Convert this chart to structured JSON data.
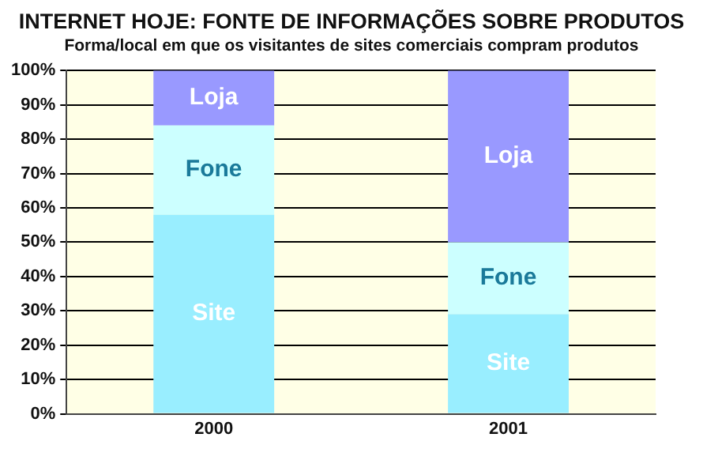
{
  "chart_data": {
    "type": "bar",
    "title": "INTERNET HOJE: FONTE DE INFORMAÇÕES SOBRE PRODUTOS",
    "subtitle": "Forma/local em que os visitantes de sites comerciais compram produtos",
    "categories": [
      "2000",
      "2001"
    ],
    "stacked": true,
    "series": [
      {
        "name": "Site",
        "color": "#99eeff",
        "values": [
          58,
          29
        ]
      },
      {
        "name": "Fone",
        "color": "#ccffff",
        "values": [
          26,
          21
        ]
      },
      {
        "name": "Loja",
        "color": "#9999ff",
        "values": [
          16,
          50
        ]
      }
    ],
    "ylim": [
      0,
      100
    ],
    "yticks": [
      {
        "value": 0,
        "label": "0%"
      },
      {
        "value": 10,
        "label": "10%"
      },
      {
        "value": 20,
        "label": "20%"
      },
      {
        "value": 30,
        "label": "30%"
      },
      {
        "value": 40,
        "label": "40%"
      },
      {
        "value": 50,
        "label": "50%"
      },
      {
        "value": 60,
        "label": "60%"
      },
      {
        "value": 70,
        "label": "70%"
      },
      {
        "value": 80,
        "label": "80%"
      },
      {
        "value": 90,
        "label": "90%"
      },
      {
        "value": 100,
        "label": "100%"
      }
    ],
    "grid": "y",
    "legend": false
  }
}
